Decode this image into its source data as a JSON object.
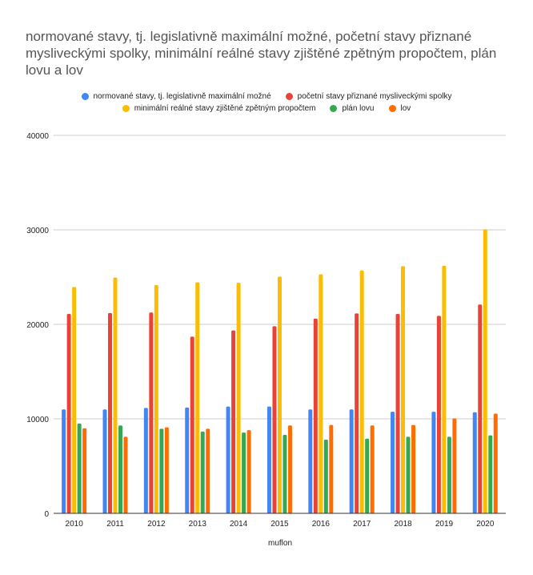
{
  "chart_data": {
    "type": "bar",
    "title": "normované stavy, tj. legislativně maximální možné, početní stavy přiznané mysliveckými spolky, minimální reálné stavy zjištěné zpětným propočtem, plán lovu a lov",
    "xlabel": "muflon",
    "ylabel": "",
    "ylim": [
      0,
      40000
    ],
    "yticks": [
      0,
      10000,
      20000,
      30000,
      40000
    ],
    "grid": true,
    "legend_position": "top",
    "categories": [
      "2010",
      "2011",
      "2012",
      "2013",
      "2014",
      "2015",
      "2016",
      "2017",
      "2018",
      "2019",
      "2020"
    ],
    "series": [
      {
        "name": "normované stavy, tj. legislativně maximální možné",
        "color": "#4285F4",
        "values": [
          11000,
          11000,
          11150,
          11200,
          11300,
          11300,
          11000,
          11000,
          10750,
          10750,
          10700
        ]
      },
      {
        "name": "početní stavy přiznané mysliveckými spolky",
        "color": "#EA4335",
        "values": [
          21100,
          21200,
          21250,
          18700,
          19350,
          19800,
          20600,
          21150,
          21100,
          20900,
          22100
        ]
      },
      {
        "name": "minimální reálné stavy zjištěné zpětným propočtem",
        "color": "#FBBC04",
        "values": [
          23950,
          24950,
          24150,
          24450,
          24400,
          25050,
          25300,
          25700,
          26150,
          26200,
          30050
        ]
      },
      {
        "name": "plán lovu",
        "color": "#34A853",
        "values": [
          9500,
          9300,
          8950,
          8650,
          8550,
          8300,
          7800,
          7900,
          8100,
          8100,
          8250
        ]
      },
      {
        "name": "lov",
        "color": "#FF6D01",
        "values": [
          9000,
          8100,
          9100,
          8950,
          8800,
          9300,
          9350,
          9300,
          9350,
          10050,
          10550
        ]
      }
    ]
  }
}
